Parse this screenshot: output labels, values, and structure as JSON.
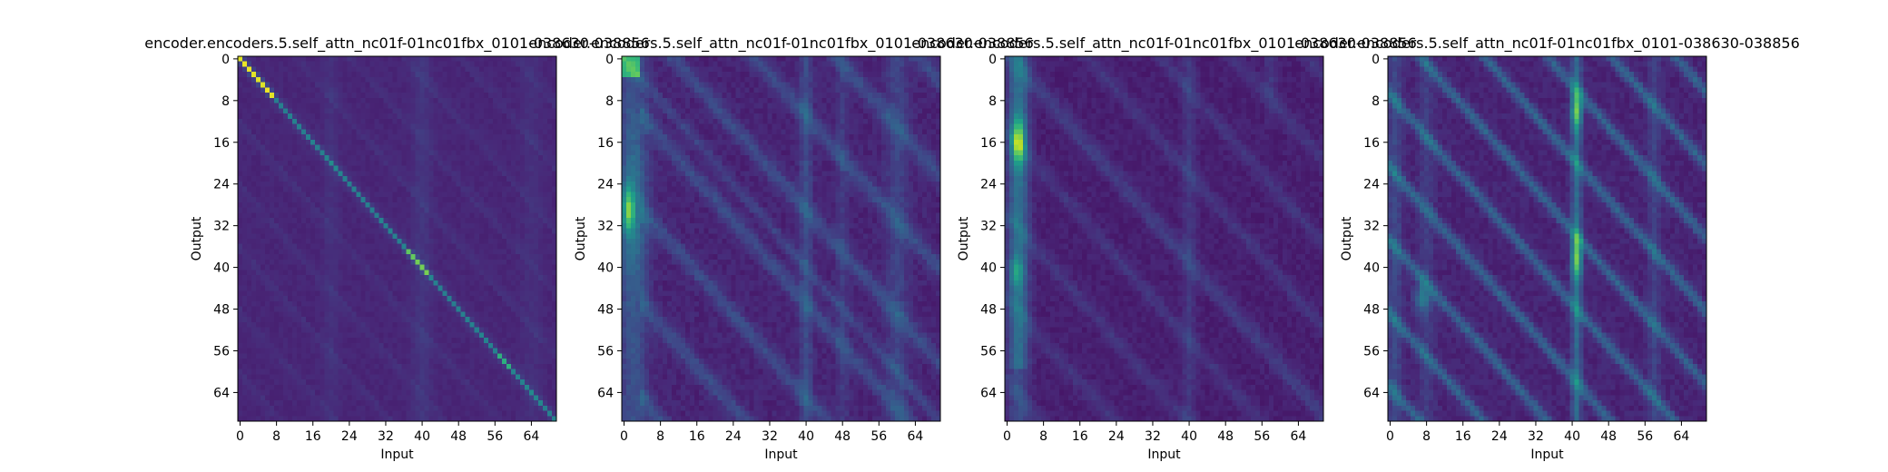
{
  "chart_data": [
    {
      "type": "heatmap",
      "title": "encoder.encoders.5.self_attn_nc01f-01nc01fbx_0101-038630-038856",
      "xlabel": "Input",
      "ylabel": "Output",
      "xticks": [
        0,
        8,
        16,
        24,
        32,
        40,
        48,
        56,
        64
      ],
      "yticks": [
        0,
        8,
        16,
        24,
        32,
        40,
        48,
        56,
        64
      ],
      "xlim": [
        0,
        69
      ],
      "ylim": [
        69,
        0
      ],
      "colormap": "viridis",
      "pattern": "strong diagonal (self-attention); brightest near origin and around index 39-42, faint vertical band near input 40"
    },
    {
      "type": "heatmap",
      "title": "encoder.encoders.5.self_attn_nc01f-01nc01fbx_0101-038630-038856",
      "xlabel": "Input",
      "ylabel": "Output",
      "xticks": [
        0,
        8,
        16,
        24,
        32,
        40,
        48,
        56,
        64
      ],
      "yticks": [
        0,
        8,
        16,
        24,
        32,
        40,
        48,
        56,
        64
      ],
      "xlim": [
        0,
        69
      ],
      "ylim": [
        69,
        0
      ],
      "colormap": "viridis",
      "pattern": "bright column at inputs 0-6 (peak near output 29), diffuse diagonal stripes, vertical bands near inputs 40 and 58-62"
    },
    {
      "type": "heatmap",
      "title": "encoder.encoders.5.self_attn_nc01f-01nc01fbx_0101-038630-038856",
      "xlabel": "Input",
      "ylabel": "Output",
      "xticks": [
        0,
        8,
        16,
        24,
        32,
        40,
        48,
        56,
        64
      ],
      "yticks": [
        0,
        8,
        16,
        24,
        32,
        40,
        48,
        56,
        64
      ],
      "xlim": [
        0,
        69
      ],
      "ylim": [
        69,
        0
      ],
      "colormap": "viridis",
      "pattern": "bright column at inputs 1-4 (peak near output 17), faint diagonal stripes, weak vertical band near input 40"
    },
    {
      "type": "heatmap",
      "title": "encoder.encoders.5.self_attn_nc01f-01nc01fbx_0101-038630-038856",
      "xlabel": "Input",
      "ylabel": "Output",
      "xticks": [
        0,
        8,
        16,
        24,
        32,
        40,
        48,
        56,
        64
      ],
      "yticks": [
        0,
        8,
        16,
        24,
        32,
        40,
        48,
        56,
        64
      ],
      "xlim": [
        0,
        69
      ],
      "ylim": [
        69,
        0
      ],
      "colormap": "viridis",
      "pattern": "strong vertical band at input 41 (peaks near outputs 10 and 38), many parallel diagonal stripes, vertical band near input 58"
    }
  ]
}
